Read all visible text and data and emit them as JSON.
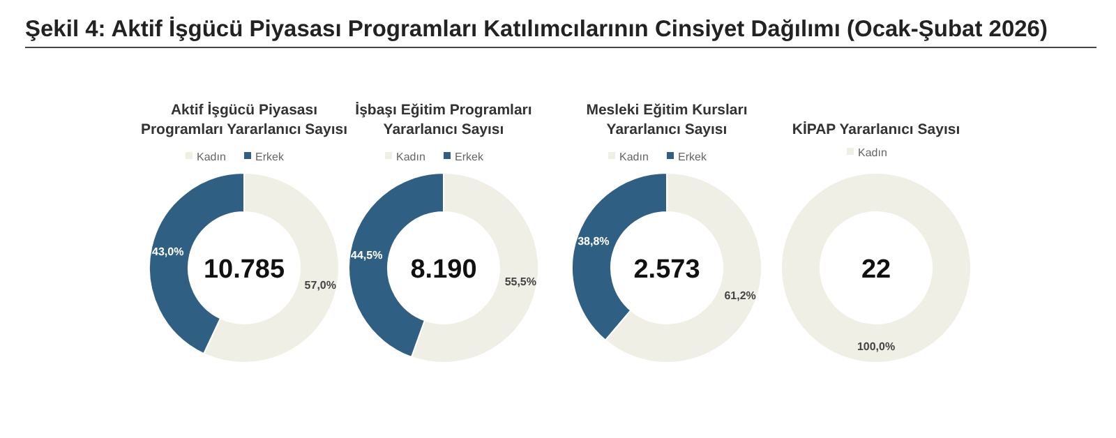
{
  "chart_data": [
    {
      "type": "other",
      "title": "Şekil 4: Aktif İşgücü Piyasası Programları Katılımcılarının Cinsiyet Dağılımı (Ocak-Şubat 2026)"
    },
    {
      "type": "donut",
      "title": "Aktif İşgücü Piyasası\nProgramları Yararlanıcı Sayısı",
      "categories": [
        "Kadın",
        "Erkek"
      ],
      "values": [
        57.0,
        43.0
      ],
      "colors": [
        "#efefe6",
        "#2f5f82"
      ],
      "value_labels": [
        "57,0%",
        "43,0%"
      ],
      "annotations": [
        "10.785"
      ],
      "legend": "top"
    },
    {
      "type": "donut",
      "title": "İşbaşı Eğitim Programları\nYararlanıcı Sayısı",
      "categories": [
        "Kadın",
        "Erkek"
      ],
      "values": [
        55.5,
        44.5
      ],
      "colors": [
        "#efefe6",
        "#2f5f82"
      ],
      "value_labels": [
        "55,5%",
        "44,5%"
      ],
      "annotations": [
        "8.190"
      ],
      "legend": "top"
    },
    {
      "type": "donut",
      "title": "Mesleki Eğitim Kursları\nYararlanıcı Sayısı",
      "categories": [
        "Kadın",
        "Erkek"
      ],
      "values": [
        61.2,
        38.8
      ],
      "colors": [
        "#efefe6",
        "#2f5f82"
      ],
      "value_labels": [
        "61,2%",
        "38,8%"
      ],
      "annotations": [
        "2.573"
      ],
      "legend": "top"
    },
    {
      "type": "donut",
      "title": "KİPAP Yararlanıcı Sayısı",
      "categories": [
        "Kadın"
      ],
      "values": [
        100.0
      ],
      "colors": [
        "#efefe6"
      ],
      "value_labels": [
        "100,0%"
      ],
      "annotations": [
        "22"
      ],
      "legend": "top"
    }
  ]
}
